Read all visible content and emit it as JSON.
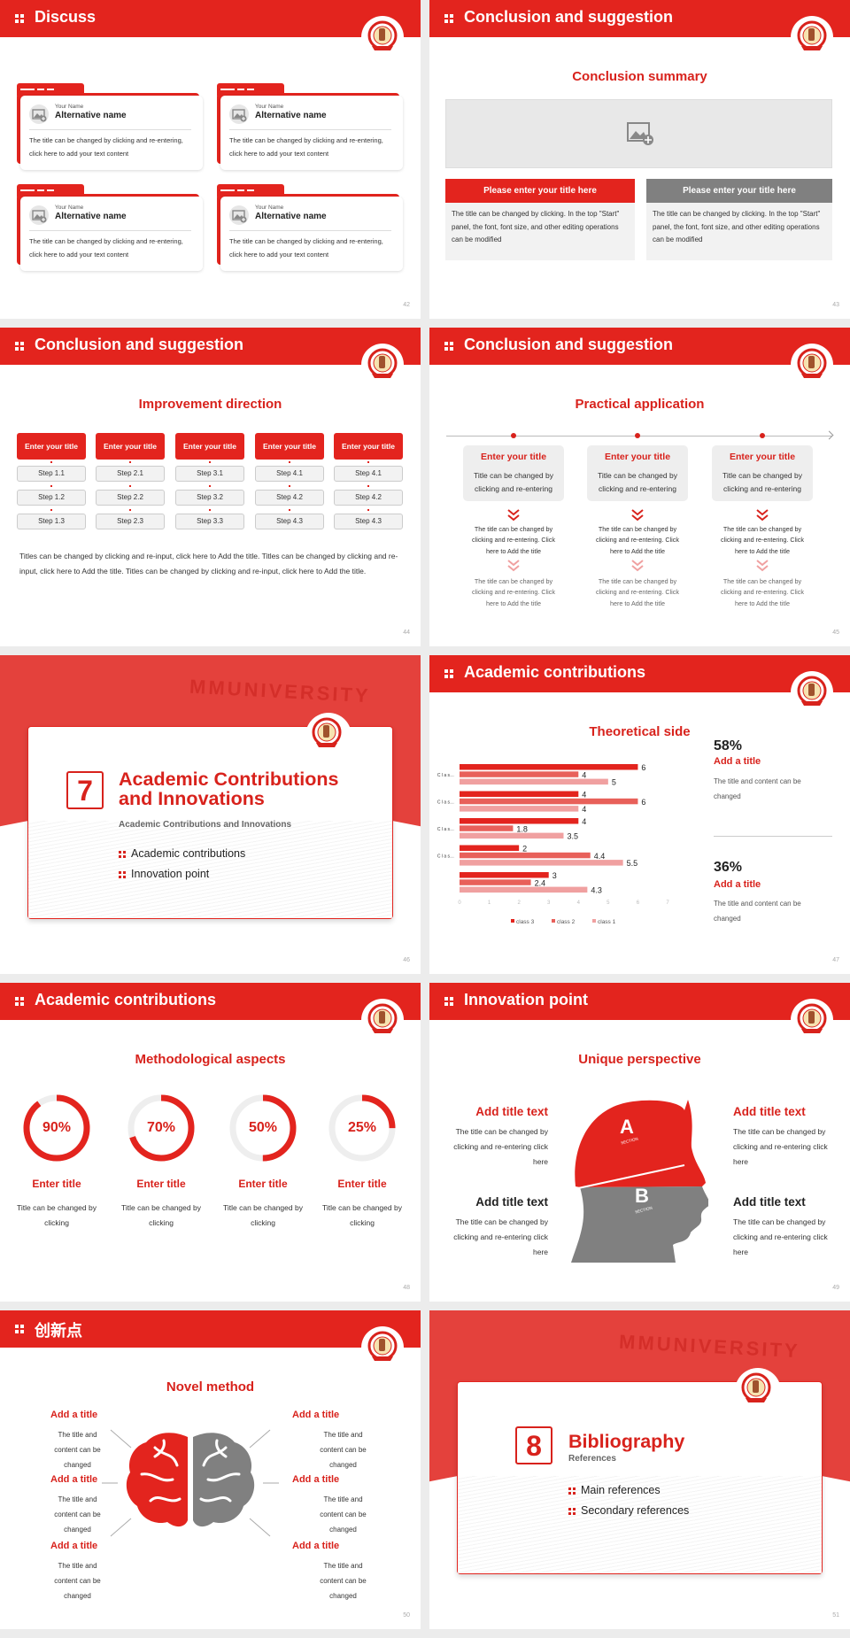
{
  "colors": {
    "accent": "#e3241e",
    "gray": "#808080",
    "light_red": "#f0a0a0",
    "mid_red": "#e8605a"
  },
  "slides": {
    "s42": {
      "title": "Discuss",
      "page": "42",
      "cards": [
        {
          "small": "Your Name",
          "name": "Alternative name",
          "text": "The title can be changed by clicking and re-entering, click here to add your text content",
          "icon": "image-add-icon"
        },
        {
          "small": "Your Name",
          "name": "Alternative name",
          "text": "The title can be changed by clicking and re-entering, click here to add your text content",
          "icon": "image-add-icon"
        },
        {
          "small": "Your Name",
          "name": "Alternative name",
          "text": "The title can be changed by clicking and re-entering, click here to add your text content",
          "icon": "image-add-icon"
        },
        {
          "small": "Your Name",
          "name": "Alternative name",
          "text": "The title can be changed by clicking and re-entering, click here to add your text content",
          "icon": "image-add-icon"
        }
      ]
    },
    "s43": {
      "title": "Conclusion and suggestion",
      "page": "43",
      "subtitle": "Conclusion summary",
      "boxes": [
        {
          "title": "Please enter your title here",
          "text": "The title can be changed by clicking. In the top \"Start\" panel, the font, font size, and other editing operations can be modified"
        },
        {
          "title": "Please enter your title here",
          "text": "The title can be changed by clicking. In the top \"Start\" panel, the font, font size, and other editing operations can be modified"
        }
      ]
    },
    "s44": {
      "title": "Conclusion and suggestion",
      "page": "44",
      "subtitle": "Improvement direction",
      "columns": [
        {
          "head": "Enter your title",
          "steps": [
            "Step 1.1",
            "Step 1.2",
            "Step 1.3"
          ]
        },
        {
          "head": "Enter your title",
          "steps": [
            "Step 2.1",
            "Step 2.2",
            "Step 2.3"
          ]
        },
        {
          "head": "Enter your title",
          "steps": [
            "Step 3.1",
            "Step 3.2",
            "Step 3.3"
          ]
        },
        {
          "head": "Enter your title",
          "steps": [
            "Step 4.1",
            "Step 4.2",
            "Step 4.3"
          ]
        },
        {
          "head": "Enter your title",
          "steps": [
            "Step 4.1",
            "Step 4.2",
            "Step 4.3"
          ]
        }
      ],
      "paragraph": "Titles can be changed by clicking and re-input, click here to Add the title. Titles can be changed by clicking and re-input, click here to Add the title. Titles can be changed by clicking and re-input, click here to Add the title."
    },
    "s45": {
      "title": "Conclusion and suggestion",
      "page": "45",
      "subtitle": "Practical application",
      "columns": [
        {
          "head": "Enter your title",
          "desc": "Title can be changed by clicking and re-entering",
          "t1": "The title can be changed by clicking and re-entering. Click here to Add the title",
          "t2": "The title can be changed by clicking and re-entering. Click here to Add the title"
        },
        {
          "head": "Enter your title",
          "desc": "Title can be changed by clicking and re-entering",
          "t1": "The title can be changed by clicking and re-entering. Click here to Add the title",
          "t2": "The title can be changed by clicking and re-entering. Click here to Add the title"
        },
        {
          "head": "Enter your title",
          "desc": "Title can be changed by clicking and re-entering",
          "t1": "The title can be changed by clicking and re-entering. Click here to Add the title",
          "t2": "The title can be changed by clicking and re-entering. Click here to Add the title"
        }
      ]
    },
    "s46": {
      "page": "46",
      "watermark": "MMUNIVERSITY",
      "number": "7",
      "title": "Academic Contributions and Innovations",
      "subtitle": "Academic Contributions and Innovations",
      "items": [
        "Academic contributions",
        "Innovation point"
      ]
    },
    "s47": {
      "title": "Academic contributions",
      "page": "47",
      "subtitle": "Theoretical side",
      "stats": [
        {
          "value": "58%",
          "title": "Add a title",
          "text": "The title and content can be changed"
        },
        {
          "value": "36%",
          "title": "Add a title",
          "text": "The title and content can be changed"
        }
      ]
    },
    "s48": {
      "title": "Academic contributions",
      "page": "48",
      "subtitle": "Methodological aspects",
      "rings": [
        {
          "percent": 90,
          "label": "90%",
          "title": "Enter title",
          "text": "Title can be changed by clicking"
        },
        {
          "percent": 70,
          "label": "70%",
          "title": "Enter title",
          "text": "Title can be changed by clicking"
        },
        {
          "percent": 50,
          "label": "50%",
          "title": "Enter title",
          "text": "Title can be changed by clicking"
        },
        {
          "percent": 25,
          "label": "25%",
          "title": "Enter title",
          "text": "Title can be changed by clicking"
        }
      ]
    },
    "s49": {
      "title": "Innovation point",
      "page": "49",
      "subtitle": "Unique perspective",
      "section_a": "A",
      "section_b": "B",
      "section_word": "SECTION",
      "items": [
        {
          "title": "Add title text",
          "text": "The title can be changed by clicking and re-entering click here"
        },
        {
          "title": "Add title text",
          "text": "The title can be changed by clicking and re-entering click here"
        },
        {
          "title": "Add title text",
          "text": "The title can be changed by clicking and re-entering click here"
        },
        {
          "title": "Add title text",
          "text": "The title can be changed by clicking and re-entering click here"
        }
      ]
    },
    "s50": {
      "title": "创新点",
      "page": "50",
      "subtitle": "Novel method",
      "items": [
        {
          "title": "Add a title",
          "text": "The title and content can be changed"
        },
        {
          "title": "Add a title",
          "text": "The title and content can be changed"
        },
        {
          "title": "Add a title",
          "text": "The title and content can be changed"
        },
        {
          "title": "Add a title",
          "text": "The title and content can be changed"
        },
        {
          "title": "Add a title",
          "text": "The title and content can be changed"
        },
        {
          "title": "Add a title",
          "text": "The title and content can be changed"
        }
      ]
    },
    "s51": {
      "page": "51",
      "watermark": "MMUNIVERSITY",
      "number": "8",
      "title": "Bibliography",
      "subtitle": "References",
      "items": [
        "Main references",
        "Secondary references"
      ]
    }
  },
  "chart_data": {
    "type": "bar",
    "orientation": "horizontal",
    "categories": [
      "C l a s…",
      "C l a s…",
      "C l a s…",
      "C l a s…",
      ""
    ],
    "series": [
      {
        "name": "class 3",
        "color": "#e3241e",
        "values": [
          6,
          4,
          4,
          2,
          3
        ]
      },
      {
        "name": "class 2",
        "color": "#e8605a",
        "values": [
          4,
          6,
          1.8,
          4.4,
          2.4
        ]
      },
      {
        "name": "class 1",
        "color": "#f0a0a0",
        "values": [
          5,
          4,
          3.5,
          5.5,
          4.3
        ]
      }
    ],
    "xlim": [
      0,
      7
    ],
    "xticks": [
      "0",
      "1",
      "2",
      "3",
      "4",
      "5",
      "6",
      "7"
    ],
    "legend": "bottom",
    "grid": false
  }
}
